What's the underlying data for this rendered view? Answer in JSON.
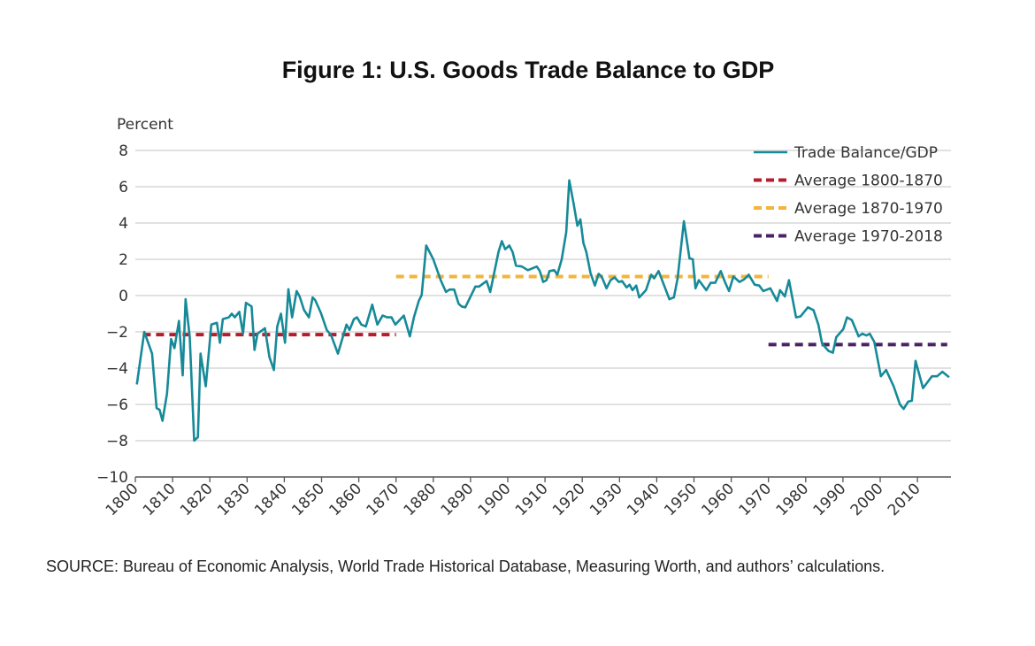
{
  "chart_data": {
    "type": "line",
    "title": "Figure 1: U.S. Goods Trade Balance to GDP",
    "ylabel": "Percent",
    "xlabel": "",
    "ylim": [
      -10,
      8
    ],
    "xlim": [
      1800,
      2018
    ],
    "yticks": [
      "8",
      "6",
      "4",
      "2",
      "0",
      "−2",
      "−4",
      "−6",
      "−8",
      "−10"
    ],
    "ytick_values": [
      8,
      6,
      4,
      2,
      0,
      -2,
      -4,
      -6,
      -8,
      -10
    ],
    "xticks": [
      "1800",
      "1810",
      "1820",
      "1830",
      "1840",
      "1850",
      "1860",
      "1870",
      "1880",
      "1890",
      "1900",
      "1910",
      "1920",
      "1930",
      "1940",
      "1950",
      "1960",
      "1970",
      "1980",
      "1990",
      "2000",
      "2010"
    ],
    "grid": true,
    "legend_position": "top-right",
    "series": [
      {
        "name": "Trade Balance/GDP",
        "color": "#168a98",
        "style": "solid",
        "x": [
          1800.4,
          1802.4,
          1804.5,
          1805.7,
          1806.5,
          1807.3,
          1808.5,
          1809.6,
          1810.5,
          1811.7,
          1812.7,
          1813.5,
          1814.6,
          1815.8,
          1816.8,
          1817.5,
          1818.9,
          1820.4,
          1821.9,
          1822.7,
          1823.5,
          1825.1,
          1825.9,
          1826.7,
          1827.9,
          1828.9,
          1829.7,
          1831.2,
          1832,
          1832.8,
          1834.8,
          1836,
          1837.2,
          1838.1,
          1839.1,
          1840.2,
          1841.1,
          1842.1,
          1843.3,
          1844.1,
          1845.3,
          1846.6,
          1847.6,
          1848.3,
          1849.8,
          1851.4,
          1852.6,
          1854.4,
          1856.7,
          1857.5,
          1858.7,
          1859.5,
          1860.7,
          1861.9,
          1863.6,
          1865,
          1866.4,
          1867.6,
          1868.8,
          1869.8,
          1872.1,
          1873.7,
          1874.8,
          1876.1,
          1876.9,
          1878.1,
          1880,
          1882,
          1883.4,
          1884.4,
          1885.6,
          1886.8,
          1887.6,
          1888.6,
          1891.3,
          1892.3,
          1894.3,
          1895.3,
          1897.5,
          1898.4,
          1899.3,
          1900.4,
          1901.3,
          1902.2,
          1903.8,
          1905.4,
          1907.8,
          1908.6,
          1909.5,
          1910.4,
          1911.2,
          1912.5,
          1913.3,
          1914.5,
          1915.7,
          1916.5,
          1917.7,
          1918.7,
          1919.5,
          1920.3,
          1921.1,
          1922.2,
          1923.4,
          1924.4,
          1925.2,
          1926.5,
          1927.6,
          1928.7,
          1929.8,
          1930.7,
          1931.9,
          1932.7,
          1933.5,
          1934.5,
          1935.3,
          1937.1,
          1938.5,
          1939.3,
          1940.5,
          1942,
          1943.4,
          1944.6,
          1945.6,
          1947.3,
          1948.8,
          1949.7,
          1950.4,
          1951.3,
          1953.3,
          1954.5,
          1955.7,
          1957.2,
          1958.4,
          1959.4,
          1960.6,
          1962.2,
          1963.5,
          1964.7,
          1966.3,
          1967.5,
          1968.6,
          1970.5,
          1972.3,
          1973.1,
          1974.4,
          1975.5,
          1977.4,
          1978.6,
          1980.6,
          1982.1,
          1983.4,
          1984.4,
          1986.1,
          1987.3,
          1988.2,
          1990.1,
          1991.1,
          1992.4,
          1994.2,
          1995.2,
          1996.3,
          1997.2,
          1998.4,
          2000.2,
          2001.6,
          2003.6,
          2005.3,
          2006.3,
          2007.5,
          2008.5,
          2009.5,
          2011.5,
          2013.9,
          2015.3,
          2016.7,
          2018.5
        ],
        "y": [
          -4.9,
          -2.0,
          -3.2,
          -6.2,
          -6.3,
          -6.9,
          -5.4,
          -2.4,
          -2.9,
          -1.4,
          -4.4,
          -0.2,
          -2.3,
          -8.0,
          -7.8,
          -3.2,
          -5.0,
          -1.6,
          -1.5,
          -2.6,
          -1.3,
          -1.2,
          -1.0,
          -1.2,
          -0.9,
          -2.1,
          -0.4,
          -0.6,
          -3.0,
          -2.1,
          -1.8,
          -3.4,
          -4.1,
          -1.7,
          -1.0,
          -2.6,
          0.35,
          -1.2,
          0.25,
          -0.05,
          -0.8,
          -1.2,
          -0.1,
          -0.25,
          -0.95,
          -1.9,
          -2.2,
          -3.2,
          -1.6,
          -1.9,
          -1.3,
          -1.2,
          -1.6,
          -1.7,
          -0.5,
          -1.6,
          -1.1,
          -1.2,
          -1.2,
          -1.6,
          -1.1,
          -2.25,
          -1.2,
          -0.3,
          0.03,
          2.76,
          2.0,
          0.85,
          0.2,
          0.33,
          0.33,
          -0.45,
          -0.6,
          -0.65,
          0.5,
          0.5,
          0.8,
          0.2,
          2.4,
          3.0,
          2.55,
          2.76,
          2.4,
          1.65,
          1.6,
          1.4,
          1.6,
          1.35,
          0.75,
          0.85,
          1.35,
          1.4,
          1.15,
          2.0,
          3.5,
          6.35,
          5.05,
          3.85,
          4.2,
          2.9,
          2.4,
          1.25,
          0.55,
          1.2,
          1.05,
          0.4,
          0.85,
          1.0,
          0.75,
          0.8,
          0.45,
          0.6,
          0.3,
          0.55,
          -0.1,
          0.3,
          1.15,
          0.95,
          1.35,
          0.55,
          -0.2,
          -0.1,
          0.95,
          4.1,
          2.05,
          2.0,
          0.4,
          0.85,
          0.3,
          0.7,
          0.7,
          1.35,
          0.7,
          0.25,
          1.05,
          0.75,
          0.9,
          1.15,
          0.6,
          0.55,
          0.25,
          0.4,
          -0.3,
          0.3,
          -0.05,
          0.85,
          -1.2,
          -1.15,
          -0.65,
          -0.8,
          -1.6,
          -2.65,
          -3.05,
          -3.15,
          -2.3,
          -1.85,
          -1.2,
          -1.35,
          -2.25,
          -2.1,
          -2.2,
          -2.1,
          -2.55,
          -4.45,
          -4.1,
          -5.0,
          -6.0,
          -6.25,
          -5.85,
          -5.8,
          -3.6,
          -5.1,
          -4.45,
          -4.45,
          -4.2,
          -4.5
        ]
      },
      {
        "name": "Average 1800-1870",
        "color": "#b81c2c",
        "style": "dashed",
        "x": [
          1802,
          1870
        ],
        "y": [
          -2.15,
          -2.15
        ]
      },
      {
        "name": "Average 1870-1970",
        "color": "#f3b43c",
        "style": "dashed",
        "x": [
          1870,
          1970
        ],
        "y": [
          1.05,
          1.05
        ]
      },
      {
        "name": "Average 1970-2018",
        "color": "#4a2366",
        "style": "dashed",
        "x": [
          1970,
          2018
        ],
        "y": [
          -2.7,
          -2.7
        ]
      }
    ]
  },
  "source": "SOURCE: Bureau of Economic Analysis, World Trade Historical Database, Measuring Worth, and authors’ calculations."
}
